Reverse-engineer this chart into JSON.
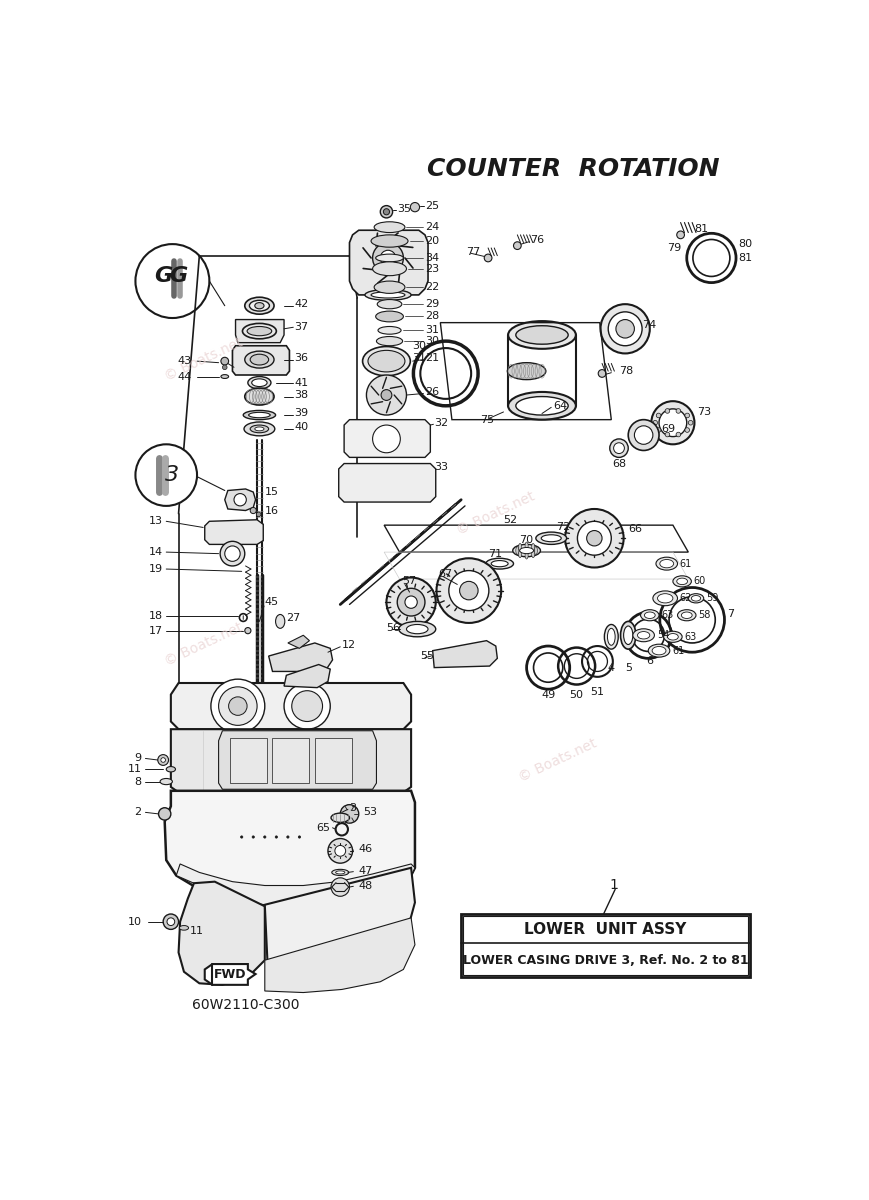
{
  "title": "COUNTER  ROTATION",
  "background_color": "#ffffff",
  "watermark": "© Boats.net",
  "part_label_line1": "LOWER  UNIT ASSY",
  "part_label_line2": "LOWER CASING DRIVE 3, Ref. No. 2 to 81",
  "part_number": "1",
  "model_code": "60W2110-C300",
  "fwd_label": "FWD",
  "dark": "#1a1a1a",
  "gray": "#888888",
  "lgray": "#cccccc",
  "wm_color": "#e8d0d0"
}
